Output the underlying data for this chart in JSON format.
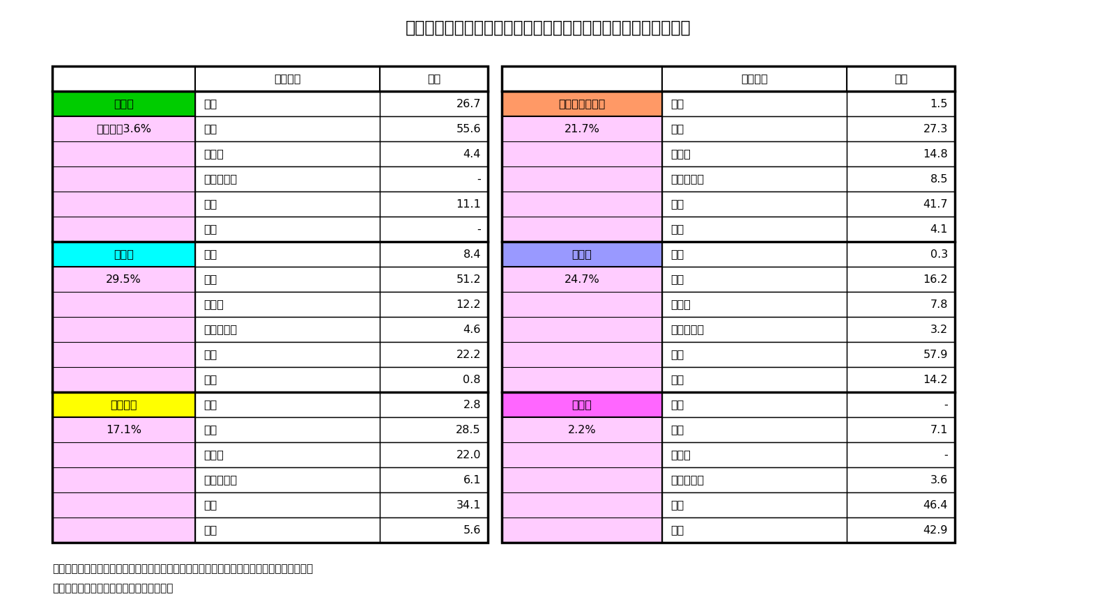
{
  "title": "【図表２】妻の最終学歴別　夫の最終学歴マトリックス表（％）",
  "footer_line1": "資料）社会保障・人口問題研究所「第１４回出生動向基本調査（夫婦調査）」より筆者作成",
  "footer_line2": "　　　２００５年以降婚姻の合計より作成",
  "sections": [
    {
      "label": "中卒妻",
      "label_color": "#00cc00",
      "pct_label": "妻全体の3.6%",
      "pct_bg": "#ffccff",
      "rows": [
        {
          "husband_edu": "中卒",
          "value": "26.7"
        },
        {
          "husband_edu": "高卒",
          "value": "55.6"
        },
        {
          "husband_edu": "専門卒",
          "value": "4.4"
        },
        {
          "husband_edu": "短大高専卒",
          "value": "-"
        },
        {
          "husband_edu": "大卒",
          "value": "11.1"
        },
        {
          "husband_edu": "院卒",
          "value": "-"
        }
      ]
    },
    {
      "label": "高卒妻",
      "label_color": "#00ffff",
      "pct_label": "29.5%",
      "pct_bg": "#ffccff",
      "rows": [
        {
          "husband_edu": "中卒",
          "value": "8.4"
        },
        {
          "husband_edu": "高卒",
          "value": "51.2"
        },
        {
          "husband_edu": "専門卒",
          "value": "12.2"
        },
        {
          "husband_edu": "短大高専卒",
          "value": "4.6"
        },
        {
          "husband_edu": "大卒",
          "value": "22.2"
        },
        {
          "husband_edu": "院卒",
          "value": "0.8"
        }
      ]
    },
    {
      "label": "専門卒妻",
      "label_color": "#ffff00",
      "pct_label": "17.1%",
      "pct_bg": "#ffccff",
      "rows": [
        {
          "husband_edu": "中卒",
          "value": "2.8"
        },
        {
          "husband_edu": "高卒",
          "value": "28.5"
        },
        {
          "husband_edu": "専門卒",
          "value": "22.0"
        },
        {
          "husband_edu": "短大高専卒",
          "value": "6.1"
        },
        {
          "husband_edu": "大卒",
          "value": "34.1"
        },
        {
          "husband_edu": "院卒",
          "value": "5.6"
        }
      ]
    },
    {
      "label": "短大・高専卒妻",
      "label_color": "#ff9966",
      "pct_label": "21.7%",
      "pct_bg": "#ffccff",
      "rows": [
        {
          "husband_edu": "中卒",
          "value": "1.5"
        },
        {
          "husband_edu": "高卒",
          "value": "27.3"
        },
        {
          "husband_edu": "専門卒",
          "value": "14.8"
        },
        {
          "husband_edu": "短大高専卒",
          "value": "8.5"
        },
        {
          "husband_edu": "大卒",
          "value": "41.7"
        },
        {
          "husband_edu": "院卒",
          "value": "4.1"
        }
      ]
    },
    {
      "label": "大卒妻",
      "label_color": "#9999ff",
      "pct_label": "24.7%",
      "pct_bg": "#ffccff",
      "rows": [
        {
          "husband_edu": "中卒",
          "value": "0.3"
        },
        {
          "husband_edu": "高卒",
          "value": "16.2"
        },
        {
          "husband_edu": "専門卒",
          "value": "7.8"
        },
        {
          "husband_edu": "短大高専卒",
          "value": "3.2"
        },
        {
          "husband_edu": "大卒",
          "value": "57.9"
        },
        {
          "husband_edu": "院卒",
          "value": "14.2"
        }
      ]
    },
    {
      "label": "院卒妻",
      "label_color": "#ff66ff",
      "pct_label": "2.2%",
      "pct_bg": "#ffccff",
      "rows": [
        {
          "husband_edu": "中卒",
          "value": "-"
        },
        {
          "husband_edu": "高卒",
          "value": "7.1"
        },
        {
          "husband_edu": "専門卒",
          "value": "-"
        },
        {
          "husband_edu": "短大高専卒",
          "value": "3.6"
        },
        {
          "husband_edu": "大卒",
          "value": "46.4"
        },
        {
          "husband_edu": "院卒",
          "value": "42.9"
        }
      ]
    }
  ],
  "col_header_1": "夫の学歴",
  "col_header_2": "割合",
  "pink_bg": "#ffccff",
  "white_bg": "#ffffff",
  "header_bg": "#ffffff"
}
